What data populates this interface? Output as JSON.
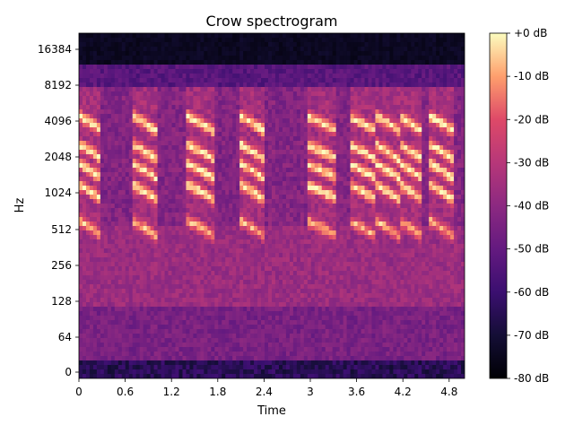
{
  "chart_data": {
    "type": "heatmap",
    "title": "Crow spectrogram",
    "xlabel": "Time",
    "ylabel": "Hz",
    "x_scale": "linear",
    "y_scale": "symlog (base 2)",
    "xlim": [
      0,
      5.0
    ],
    "ylim": [
      0,
      22050
    ],
    "x_ticks": [
      0,
      0.6,
      1.2,
      1.8,
      2.4,
      3.0,
      3.6,
      4.2,
      4.8
    ],
    "x_tick_labels": [
      "0",
      "0.6",
      "1.2",
      "1.8",
      "2.4",
      "3",
      "3.6",
      "4.2",
      "4.8"
    ],
    "y_ticks": [
      0,
      64,
      128,
      256,
      512,
      1024,
      2048,
      4096,
      8192,
      16384
    ],
    "y_tick_labels": [
      "0",
      "64",
      "128",
      "256",
      "512",
      "1024",
      "2048",
      "4096",
      "8192",
      "16384"
    ],
    "colormap": "magma",
    "colorbar": {
      "range": [
        -80,
        0
      ],
      "ticks": [
        0,
        -10,
        -20,
        -30,
        -40,
        -50,
        -60,
        -70,
        -80
      ],
      "tick_labels": [
        "+0 dB",
        "-10 dB",
        "-20 dB",
        "-30 dB",
        "-40 dB",
        "-50 dB",
        "-60 dB",
        "-70 dB",
        "-80 dB"
      ]
    },
    "calls": [
      {
        "start": 0.0,
        "end": 0.3
      },
      {
        "start": 0.7,
        "end": 1.0
      },
      {
        "start": 1.4,
        "end": 1.75
      },
      {
        "start": 2.1,
        "end": 2.4
      },
      {
        "start": 2.95,
        "end": 3.35
      },
      {
        "start": 3.5,
        "end": 3.85
      },
      {
        "start": 3.85,
        "end": 4.15
      },
      {
        "start": 4.15,
        "end": 4.45
      },
      {
        "start": 4.55,
        "end": 4.85
      }
    ],
    "grid": false
  }
}
